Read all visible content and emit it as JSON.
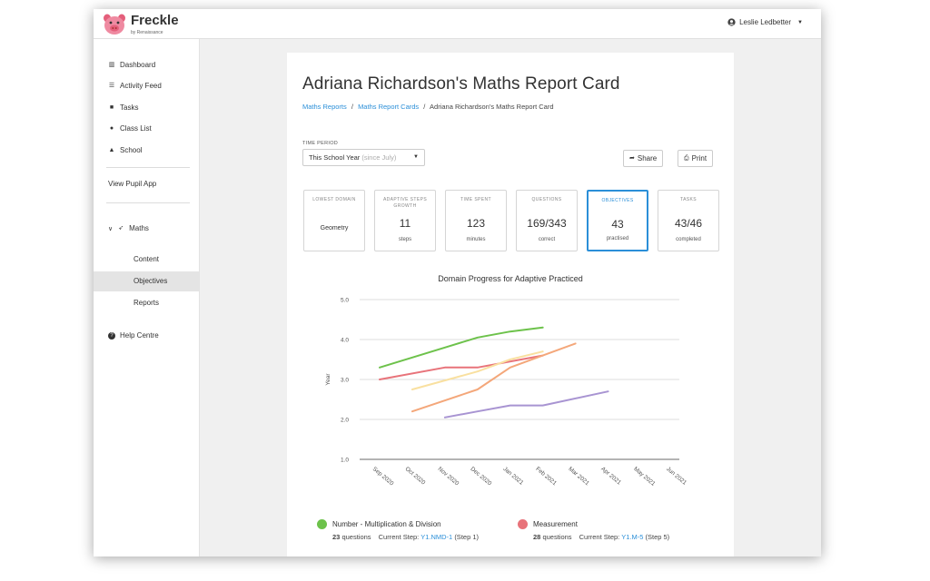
{
  "app": {
    "name": "Freckle",
    "byline": "by Renaissance"
  },
  "user": {
    "name": "Leslie Ledbetter"
  },
  "sidebar": {
    "items": [
      {
        "label": "Dashboard",
        "icon": "dashboard-icon"
      },
      {
        "label": "Activity Feed",
        "icon": "list-icon"
      },
      {
        "label": "Tasks",
        "icon": "briefcase-icon"
      },
      {
        "label": "Class List",
        "icon": "users-icon"
      },
      {
        "label": "School",
        "icon": "school-icon"
      }
    ],
    "view_pupil_app": "View Pupil App",
    "subject": {
      "label": "Maths",
      "icon": "rocket-icon"
    },
    "sub_items": [
      {
        "label": "Content"
      },
      {
        "label": "Objectives"
      },
      {
        "label": "Reports"
      }
    ],
    "help": "Help Centre"
  },
  "page": {
    "title": "Adriana Richardson's Maths Report Card",
    "breadcrumb": [
      "Maths Reports",
      "Maths Report Cards",
      "Adriana Richardson's Maths Report Card"
    ],
    "breadcrumb_sep": "/",
    "time_period_label": "TIME PERIOD",
    "time_period_value": "This School Year",
    "time_period_hint": "(since July)",
    "share_label": "Share",
    "print_label": "Print"
  },
  "stats": [
    {
      "label": "LOWEST DOMAIN",
      "value": "Geometry",
      "sub": ""
    },
    {
      "label": "ADAPTIVE STEPS GROWTH",
      "value": "11",
      "sub": "steps"
    },
    {
      "label": "TIME SPENT",
      "value": "123",
      "sub": "minutes"
    },
    {
      "label": "QUESTIONS",
      "value": "169/343",
      "sub": "correct"
    },
    {
      "label": "OBJECTIVES",
      "value": "43",
      "sub": "practised"
    },
    {
      "label": "TASKS",
      "value": "43/46",
      "sub": "completed"
    }
  ],
  "chart_data": {
    "type": "line",
    "title": "Domain Progress for Adaptive Practiced",
    "ylabel": "Year",
    "xlabel": "",
    "ylim": [
      1.0,
      5.0
    ],
    "yticks": [
      "1.0",
      "2.0",
      "3.0",
      "4.0",
      "5.0"
    ],
    "categories": [
      "Sep 2020",
      "Oct 2020",
      "Nov 2020",
      "Dec 2020",
      "Jan 2021",
      "Feb 2021",
      "Mar 2021",
      "Apr 2021",
      "May 2021",
      "Jun 2021"
    ],
    "grid": true,
    "series": [
      {
        "name": "Number - Multiplication & Division",
        "color": "#6dc24b",
        "x": [
          0,
          2,
          3,
          4,
          5
        ],
        "values": [
          3.3,
          3.8,
          4.05,
          4.2,
          4.3
        ]
      },
      {
        "name": "Measurement",
        "color": "#e8737a",
        "x": [
          0,
          2,
          3,
          5
        ],
        "values": [
          3.0,
          3.3,
          3.3,
          3.6
        ]
      },
      {
        "color": "#f9e0a0",
        "x": [
          1,
          3,
          4,
          5
        ],
        "values": [
          2.75,
          3.2,
          3.5,
          3.7
        ]
      },
      {
        "color": "#f4a77a",
        "x": [
          1,
          3,
          4,
          5,
          6
        ],
        "values": [
          2.2,
          2.75,
          3.3,
          3.6,
          3.9
        ]
      },
      {
        "color": "#a894d2",
        "x": [
          2,
          3,
          4,
          5,
          7
        ],
        "values": [
          2.05,
          2.2,
          2.35,
          2.35,
          2.7
        ]
      }
    ]
  },
  "legend": [
    {
      "name": "Number - Multiplication & Division",
      "color": "#6dc24b",
      "questions": "23",
      "questions_label": "questions",
      "step_label": "Current Step:",
      "step_code": "Y1.NMD-1",
      "step_num": "(Step 1)"
    },
    {
      "name": "Measurement",
      "color": "#e8737a",
      "questions": "28",
      "questions_label": "questions",
      "step_label": "Current Step:",
      "step_code": "Y1.M-5",
      "step_num": "(Step 5)"
    }
  ]
}
